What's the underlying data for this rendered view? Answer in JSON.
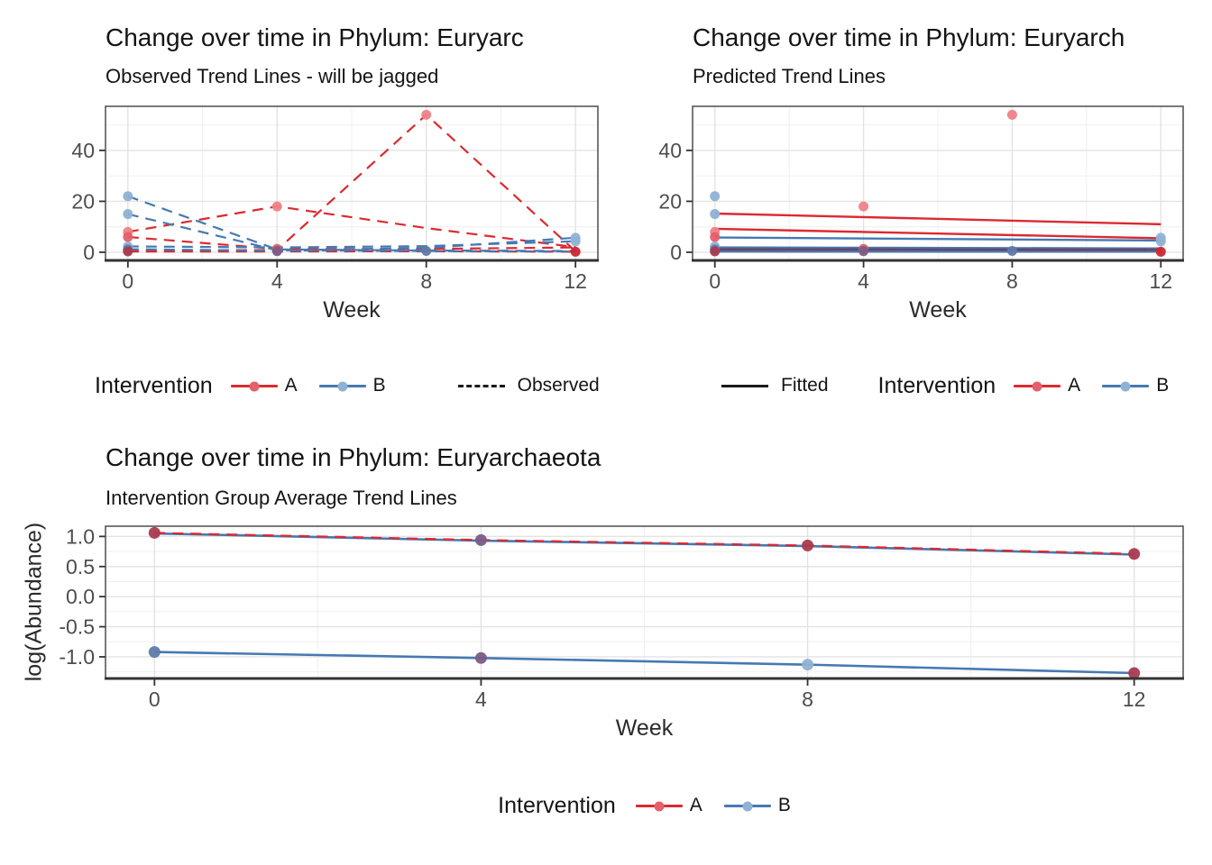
{
  "figure": {
    "background": "#FFFFFF"
  },
  "colors": {
    "red": "#DB2A30",
    "blue": "#4679B2",
    "black": "#1A1A1A",
    "pt_red": "#EE8288",
    "pt_red_med": "#E4606A",
    "pt_blue": "#8FB2D4",
    "pt_dark_red": "#A93B50",
    "pt_purple": "#7A5C87",
    "pt_dark_blue": "#5F7BA8",
    "pt_bold_red": "#CC2730",
    "dark_line": "#41517B",
    "grid_major": "#E3E3E3",
    "grid_minor": "#F0F0F0",
    "panel_border": "#4D4D4D",
    "axis_line": "#333333",
    "tick_text": "#4D4D4D"
  },
  "chart_data": [
    {
      "type": "line",
      "title": "Change over time in Phylum: Euryarc",
      "subtitle": "Observed Trend Lines - will be jagged",
      "xlabel": "Week",
      "ylabel": "",
      "xlim": [
        -0.6,
        12.6
      ],
      "ylim": [
        -3.2,
        57.3
      ],
      "x_ticks": [
        0,
        4,
        8,
        12
      ],
      "x_tick_labels": [
        "0",
        "4",
        "8",
        "12"
      ],
      "x_minor": [
        2,
        6,
        10
      ],
      "y_ticks": [
        0,
        20,
        40
      ],
      "y_tick_labels": [
        "0",
        "20",
        "40"
      ],
      "y_minor": [
        10,
        30,
        50
      ],
      "grid": true,
      "legend_position": "bottom",
      "series": [
        {
          "group": "A",
          "style": "dashed",
          "color": "red",
          "width": 2.2,
          "points": [
            [
              0,
              8
            ],
            [
              4,
              18
            ],
            [
              8,
              9.5
            ],
            [
              12,
              2
            ]
          ]
        },
        {
          "group": "A",
          "style": "dashed",
          "color": "red",
          "width": 2.2,
          "points": [
            [
              0,
              0.6
            ],
            [
              4,
              0.9
            ],
            [
              8,
              54
            ],
            [
              12,
              0.4
            ]
          ]
        },
        {
          "group": "A",
          "style": "dashed",
          "color": "red",
          "width": 2.2,
          "points": [
            [
              0,
              6
            ],
            [
              4,
              1.3
            ],
            [
              8,
              1.3
            ],
            [
              12,
              1.9
            ]
          ]
        },
        {
          "group": "A",
          "style": "dashed",
          "color": "red",
          "width": 2.2,
          "points": [
            [
              0,
              0.3
            ],
            [
              4,
              0.3
            ],
            [
              8,
              0.4
            ],
            [
              12,
              0.2
            ]
          ]
        },
        {
          "group": "B",
          "style": "dashed",
          "color": "blue",
          "width": 2.2,
          "points": [
            [
              0,
              22
            ],
            [
              4,
              1.1
            ],
            [
              8,
              0.7
            ],
            [
              12,
              0.5
            ]
          ]
        },
        {
          "group": "B",
          "style": "dashed",
          "color": "blue",
          "width": 2.2,
          "points": [
            [
              0,
              15
            ],
            [
              4,
              0.8
            ],
            [
              8,
              0.5
            ],
            [
              12,
              0.3
            ]
          ]
        },
        {
          "group": "B",
          "style": "dashed",
          "color": "blue",
          "width": 2.2,
          "points": [
            [
              0,
              2.3
            ],
            [
              4,
              1.9
            ],
            [
              8,
              2.4
            ],
            [
              12,
              4.3
            ]
          ]
        },
        {
          "group": "B",
          "style": "dashed",
          "color": "blue",
          "width": 2.2,
          "points": [
            [
              0,
              1.2
            ],
            [
              4,
              0.6
            ],
            [
              8,
              1.7
            ],
            [
              12,
              5.7
            ]
          ]
        }
      ],
      "scatter": [
        [
          0,
          22,
          "pt_blue"
        ],
        [
          0,
          15,
          "pt_blue"
        ],
        [
          0,
          8,
          "pt_red"
        ],
        [
          0,
          6,
          "pt_red_med"
        ],
        [
          0,
          2.3,
          "pt_blue"
        ],
        [
          0,
          1.1,
          "pt_dark_blue"
        ],
        [
          0,
          0.35,
          "pt_dark_red"
        ],
        [
          4,
          18,
          "pt_red"
        ],
        [
          4,
          1.3,
          "pt_red_med"
        ],
        [
          4,
          0.45,
          "pt_purple"
        ],
        [
          8,
          54,
          "pt_red"
        ],
        [
          8,
          0.5,
          "pt_dark_blue"
        ],
        [
          12,
          5.7,
          "pt_blue"
        ],
        [
          12,
          4.3,
          "pt_blue"
        ],
        [
          12,
          0.2,
          "pt_bold_red"
        ]
      ]
    },
    {
      "type": "line",
      "title": "Change over time in Phylum: Euryarch",
      "subtitle": "Predicted Trend Lines",
      "xlabel": "Week",
      "ylabel": "",
      "xlim": [
        -0.6,
        12.6
      ],
      "ylim": [
        -3.2,
        57.3
      ],
      "x_ticks": [
        0,
        4,
        8,
        12
      ],
      "x_tick_labels": [
        "0",
        "4",
        "8",
        "12"
      ],
      "x_minor": [
        2,
        6,
        10
      ],
      "y_ticks": [
        0,
        20,
        40
      ],
      "y_tick_labels": [
        "0",
        "20",
        "40"
      ],
      "y_minor": [
        10,
        30,
        50
      ],
      "grid": true,
      "legend_position": "bottom",
      "series": [
        {
          "group": "A",
          "style": "solid",
          "color": "red",
          "width": 2.4,
          "points": [
            [
              0,
              15.2
            ],
            [
              12,
              11
            ]
          ]
        },
        {
          "group": "A",
          "style": "solid",
          "color": "red",
          "width": 2.4,
          "points": [
            [
              0,
              9.2
            ],
            [
              12,
              5.5
            ]
          ]
        },
        {
          "group": "B",
          "style": "solid",
          "color": "blue",
          "width": 2.4,
          "points": [
            [
              0,
              5.8
            ],
            [
              12,
              4.6
            ]
          ]
        },
        {
          "group": "B",
          "style": "solid",
          "color": "blue",
          "width": 2.4,
          "points": [
            [
              0,
              1.9
            ],
            [
              12,
              1.5
            ]
          ]
        },
        {
          "group": "A",
          "style": "solid",
          "color": "red",
          "width": 2.4,
          "points": [
            [
              0,
              1.2
            ],
            [
              12,
              1.0
            ]
          ]
        },
        {
          "group": "A+B overlap",
          "style": "solid",
          "color": "dark_line",
          "width": 4,
          "points": [
            [
              0,
              0.8
            ],
            [
              12,
              0.6
            ]
          ]
        },
        {
          "group": "A",
          "style": "solid",
          "color": "red",
          "width": 2.2,
          "points": [
            [
              0,
              0.4
            ],
            [
              12,
              0.33
            ]
          ]
        },
        {
          "group": "B",
          "style": "solid",
          "color": "blue",
          "width": 2.2,
          "points": [
            [
              0,
              0.22
            ],
            [
              12,
              0.18
            ]
          ]
        }
      ],
      "scatter": [
        [
          0,
          22,
          "pt_blue"
        ],
        [
          0,
          15,
          "pt_blue"
        ],
        [
          0,
          8,
          "pt_red"
        ],
        [
          0,
          6,
          "pt_red_med"
        ],
        [
          0,
          2.3,
          "pt_blue"
        ],
        [
          0,
          1.1,
          "pt_dark_blue"
        ],
        [
          0,
          0.35,
          "pt_dark_red"
        ],
        [
          4,
          18,
          "pt_red"
        ],
        [
          4,
          1.3,
          "pt_red_med"
        ],
        [
          4,
          0.45,
          "pt_purple"
        ],
        [
          8,
          54,
          "pt_red"
        ],
        [
          8,
          0.5,
          "pt_dark_blue"
        ],
        [
          12,
          5.7,
          "pt_blue"
        ],
        [
          12,
          4.3,
          "pt_blue"
        ],
        [
          12,
          0.2,
          "pt_bold_red"
        ]
      ]
    },
    {
      "type": "line",
      "title": "Change over time in Phylum: Euryarchaeota",
      "subtitle": "Intervention Group Average Trend Lines",
      "xlabel": "Week",
      "ylabel": "log(Abundance)",
      "xlim": [
        -0.6,
        12.6
      ],
      "ylim": [
        -1.36,
        1.17
      ],
      "x_ticks": [
        0,
        4,
        8,
        12
      ],
      "x_tick_labels": [
        "0",
        "4",
        "8",
        "12"
      ],
      "x_minor": [
        2,
        6,
        10
      ],
      "y_ticks": [
        1.0,
        0.5,
        0.0,
        -0.5,
        -1.0
      ],
      "y_tick_labels": [
        "1.0",
        "0.5",
        "0.0",
        "-0.5",
        "-1.0"
      ],
      "y_minor": [
        0.75,
        0.25,
        -0.25,
        -0.75,
        -1.25
      ],
      "grid": true,
      "legend_position": "bottom",
      "series": [
        {
          "group": "B",
          "style": "solid",
          "color": "blue",
          "width": 2.6,
          "points": [
            [
              0,
              1.05
            ],
            [
              4,
              0.93
            ],
            [
              8,
              0.84
            ],
            [
              12,
              0.7
            ]
          ]
        },
        {
          "group": "A",
          "style": "dashed",
          "color": "red",
          "width": 2.2,
          "points": [
            [
              0,
              1.06
            ],
            [
              4,
              0.94
            ],
            [
              8,
              0.85
            ],
            [
              12,
              0.71
            ]
          ]
        },
        {
          "group": "B",
          "style": "solid",
          "color": "blue",
          "width": 2.6,
          "points": [
            [
              0,
              -0.92
            ],
            [
              4,
              -1.02
            ],
            [
              8,
              -1.13
            ],
            [
              12,
              -1.27
            ]
          ]
        }
      ],
      "scatter": [
        [
          0,
          1.06,
          "pt_dark_red"
        ],
        [
          4,
          0.94,
          "pt_purple"
        ],
        [
          8,
          0.85,
          "pt_dark_red"
        ],
        [
          12,
          0.71,
          "pt_dark_red"
        ],
        [
          0,
          -0.92,
          "pt_dark_blue"
        ],
        [
          4,
          -1.02,
          "pt_purple"
        ],
        [
          8,
          -1.13,
          "pt_blue"
        ],
        [
          12,
          -1.27,
          "pt_dark_red"
        ]
      ]
    }
  ],
  "legends": {
    "observed": {
      "title": "Intervention",
      "items": [
        {
          "label": "A",
          "line_color": "red",
          "dot_color": "pt_red_med"
        },
        {
          "label": "B",
          "line_color": "blue",
          "dot_color": "pt_blue"
        }
      ],
      "linetype_label": "Observed"
    },
    "fitted": {
      "linetype_label": "Fitted",
      "title": "Intervention",
      "items": [
        {
          "label": "A",
          "line_color": "red",
          "dot_color": "pt_red_med"
        },
        {
          "label": "B",
          "line_color": "blue",
          "dot_color": "pt_blue"
        }
      ]
    },
    "average": {
      "title": "Intervention",
      "items": [
        {
          "label": "A",
          "line_color": "red",
          "dot_color": "pt_red_med"
        },
        {
          "label": "B",
          "line_color": "blue",
          "dot_color": "pt_blue"
        }
      ]
    }
  }
}
